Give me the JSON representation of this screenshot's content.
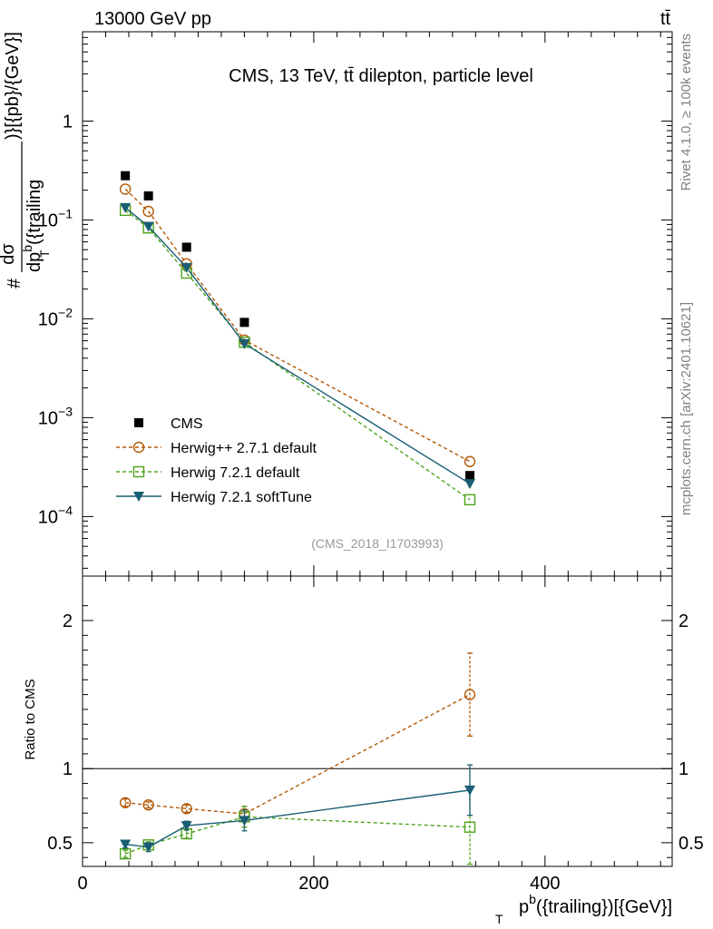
{
  "header": {
    "energy_label": "13000 GeV pp",
    "process_label": "tt̄",
    "side_rivet": "Rivet 4.1.0, ≥ 100k events",
    "side_site": "mcplots.cern.ch [arXiv:2401.10621]"
  },
  "chart_data": {
    "type": "scatter",
    "title": "CMS, 13 TeV, tt̄ dilepton, particle level",
    "analysis_id": "(CMS_2018_I1703993)",
    "xlabel_main": "p",
    "xlabel_sup": "b",
    "xlabel_sub": "T",
    "xlabel_rest": "({trailing})[{GeV}]",
    "ylabel_top_frac": "dσ",
    "ylabel_bottom_frac": "dp",
    "ylabel_bottom_sup": "b",
    "ylabel_bottom_sub": "T",
    "ylabel_bottom_rest": "({trailing",
    "ylabel_prefix": "#",
    "ylabel_suffix": ")}[{pb}/{GeV}]",
    "ratio_ylabel": "Ratio to CMS",
    "xlim": [
      0,
      510
    ],
    "main_ylim": [
      2.5e-05,
      8
    ],
    "ratio_ylim": [
      0.34,
      2.3
    ],
    "x_ticks": [
      0,
      200,
      400
    ],
    "x_tick_labels": [
      "0",
      "200",
      "400"
    ],
    "main_y_ticks": [
      1,
      0.1,
      0.01,
      0.001,
      0.0001
    ],
    "main_y_tick_labels": [
      {
        "base": "1",
        "exp": ""
      },
      {
        "base": "10",
        "exp": "−1"
      },
      {
        "base": "10",
        "exp": "−2"
      },
      {
        "base": "10",
        "exp": "−3"
      },
      {
        "base": "10",
        "exp": "−4"
      }
    ],
    "ratio_y_ticks": [
      0.5,
      1,
      2
    ],
    "ratio_y_tick_labels": [
      "0.5",
      "1",
      "2"
    ],
    "x": [
      37,
      57,
      90,
      140,
      335
    ],
    "series": [
      {
        "name": "CMS",
        "style": "data",
        "color": "#000000",
        "values": [
          0.28,
          0.175,
          0.053,
          0.0092,
          0.00026
        ],
        "ratio": [
          1,
          1,
          1,
          1,
          1
        ],
        "ratio_err": [
          0,
          0,
          0,
          0,
          0
        ]
      },
      {
        "name": "Herwig++ 2.7.1 default",
        "style": "circle-dashed",
        "color": "#b35806",
        "values": [
          0.205,
          0.122,
          0.036,
          0.0061,
          0.00036
        ],
        "ratio": [
          0.77,
          0.755,
          0.73,
          0.695,
          1.5
        ],
        "ratio_err": [
          0.025,
          0.02,
          0.025,
          0.05,
          0.28
        ]
      },
      {
        "name": "Herwig 7.2.1 default",
        "style": "square-dashed",
        "color": "#4da31a",
        "values": [
          0.125,
          0.083,
          0.029,
          0.0058,
          0.000148
        ],
        "ratio": [
          0.425,
          0.485,
          0.56,
          0.675,
          0.605
        ],
        "ratio_err": [
          0.025,
          0.02,
          0.03,
          0.07,
          0.25
        ]
      },
      {
        "name": "Herwig 7.2.1 softTune",
        "style": "triangle-solid",
        "color": "#1a5e75",
        "values": [
          0.133,
          0.086,
          0.033,
          0.0056,
          0.000215
        ],
        "ratio": [
          0.49,
          0.47,
          0.615,
          0.65,
          0.855
        ],
        "ratio_err": [
          0.025,
          0.03,
          0.03,
          0.07,
          0.17
        ]
      }
    ]
  }
}
